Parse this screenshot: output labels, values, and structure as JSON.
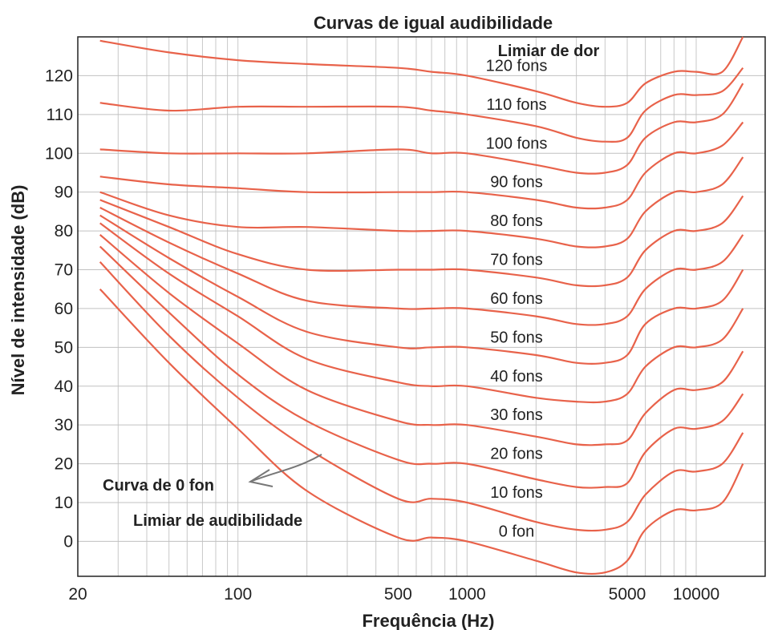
{
  "chart_data": {
    "type": "line",
    "title": "Curvas de igual audibilidade",
    "xlabel": "Frequência (Hz)",
    "ylabel": "Nível de intensidade (dB)",
    "x_scale": "log",
    "xlim": [
      20,
      20000
    ],
    "ylim": [
      -9,
      130
    ],
    "x_ticks": [
      {
        "value": 20,
        "label": "20"
      },
      {
        "value": 100,
        "label": "100"
      },
      {
        "value": 500,
        "label": "500"
      },
      {
        "value": 1000,
        "label": "1000"
      },
      {
        "value": 5000,
        "label": "5000"
      },
      {
        "value": 10000,
        "label": "10000"
      }
    ],
    "y_ticks": [
      0,
      10,
      20,
      30,
      40,
      50,
      60,
      70,
      80,
      90,
      100,
      110,
      120
    ],
    "grid": true,
    "line_color": "#e8624a",
    "x": [
      25,
      50,
      100,
      200,
      500,
      700,
      1000,
      2000,
      3000,
      4000,
      5000,
      6000,
      8000,
      10000,
      13000,
      16000
    ],
    "series": [
      {
        "name": "0 fon",
        "values": [
          65,
          46,
          29,
          13,
          1,
          1,
          0,
          -5,
          -8,
          -8,
          -5,
          3,
          8,
          8,
          10,
          20
        ]
      },
      {
        "name": "10 fons",
        "values": [
          72,
          53,
          37,
          24,
          11,
          11,
          10,
          5,
          3,
          3,
          5,
          12,
          18,
          18,
          20,
          28
        ]
      },
      {
        "name": "20 fons",
        "values": [
          76,
          59,
          43,
          31,
          21,
          20,
          20,
          16,
          14,
          14,
          15,
          23,
          29,
          29,
          31,
          38
        ]
      },
      {
        "name": "30 fons",
        "values": [
          79,
          64,
          51,
          39,
          31,
          30,
          30,
          27,
          25,
          25,
          26,
          33,
          39,
          39,
          41,
          49
        ]
      },
      {
        "name": "40 fons",
        "values": [
          82,
          69,
          58,
          47,
          41,
          40,
          40,
          37,
          36,
          36,
          38,
          45,
          50,
          50,
          52,
          60
        ]
      },
      {
        "name": "50 fons",
        "values": [
          84,
          73,
          63,
          54,
          50,
          50,
          50,
          48,
          46,
          46,
          48,
          56,
          60,
          60,
          62,
          70
        ]
      },
      {
        "name": "60 fons",
        "values": [
          86,
          77,
          69,
          62,
          60,
          60,
          60,
          58,
          56,
          56,
          58,
          65,
          70,
          70,
          72,
          79
        ]
      },
      {
        "name": "70 fons",
        "values": [
          88,
          81,
          74,
          70,
          70,
          70,
          70,
          68,
          66,
          66,
          68,
          75,
          80,
          80,
          82,
          89
        ]
      },
      {
        "name": "80 fons",
        "values": [
          90,
          84,
          81,
          81,
          80,
          80,
          80,
          78,
          76,
          76,
          78,
          85,
          90,
          90,
          92,
          99
        ]
      },
      {
        "name": "90 fons",
        "values": [
          94,
          92,
          91,
          90,
          90,
          90,
          90,
          88,
          86,
          86,
          88,
          95,
          100,
          100,
          102,
          108
        ]
      },
      {
        "name": "100 fons",
        "values": [
          101,
          100,
          100,
          100,
          101,
          100,
          100,
          97,
          95,
          95,
          97,
          104,
          108,
          108,
          110,
          118
        ]
      },
      {
        "name": "110 fons",
        "values": [
          113,
          111,
          112,
          112,
          112,
          111,
          110,
          107,
          104,
          103,
          104,
          111,
          115,
          115,
          116,
          122
        ]
      },
      {
        "name": "120 fons",
        "values": [
          129,
          126,
          124,
          123,
          122,
          121,
          120,
          116,
          113,
          112,
          113,
          118,
          121,
          121,
          121,
          130
        ]
      }
    ],
    "annotations": {
      "pain_threshold": "Limiar de dor",
      "zero_curve": "Curva de 0 fon",
      "hearing_threshold": "Limiar de audibilidade"
    }
  }
}
